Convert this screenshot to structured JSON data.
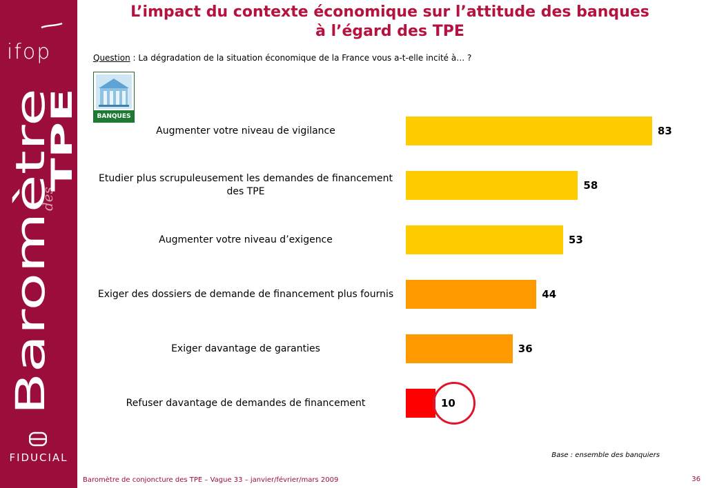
{
  "brand": {
    "logo": "ifop",
    "vertical_title_1": "Baromètre",
    "vertical_title_2": "des",
    "vertical_title_3": "TPE",
    "sponsor": "FIDUCIAL",
    "colors": {
      "band": "#9b0d3a",
      "title": "#b5123f"
    }
  },
  "title_line1": "L’impact du contexte économique sur l’attitude des banques",
  "title_line2": "à l’égard des TPE",
  "question": {
    "label": "Question",
    "separator": " :  ",
    "text": "La dégradation de la situation économique de la France vous a-t-elle incité à… ?"
  },
  "badge": {
    "label": "BANQUES",
    "icon": "bank-building-icon"
  },
  "chart_data": {
    "type": "bar",
    "orientation": "horizontal",
    "categories": [
      "Augmenter votre niveau de vigilance",
      "Etudier plus scrupuleusement les demandes de financement des TPE",
      "Augmenter votre niveau d’exigence",
      "Exiger des dossiers de demande de financement plus fournis",
      "Exiger davantage de garanties",
      "Refuser davantage de demandes de financement"
    ],
    "values": [
      83,
      58,
      53,
      44,
      36,
      10
    ],
    "value_labels": [
      "83",
      "58",
      "53",
      "44",
      "36",
      "10"
    ],
    "colors": [
      "#ffcc00",
      "#ffcc00",
      "#ffcc00",
      "#ff9900",
      "#ff9900",
      "#ff0000"
    ],
    "xlim": [
      0,
      100
    ],
    "grid": false,
    "highlighted_index": 5
  },
  "base_note": "Base : ensemble des banquiers",
  "footer": "Baromètre de conjoncture des TPE – Vague 33 – janvier/février/mars 2009",
  "page_number": "36"
}
